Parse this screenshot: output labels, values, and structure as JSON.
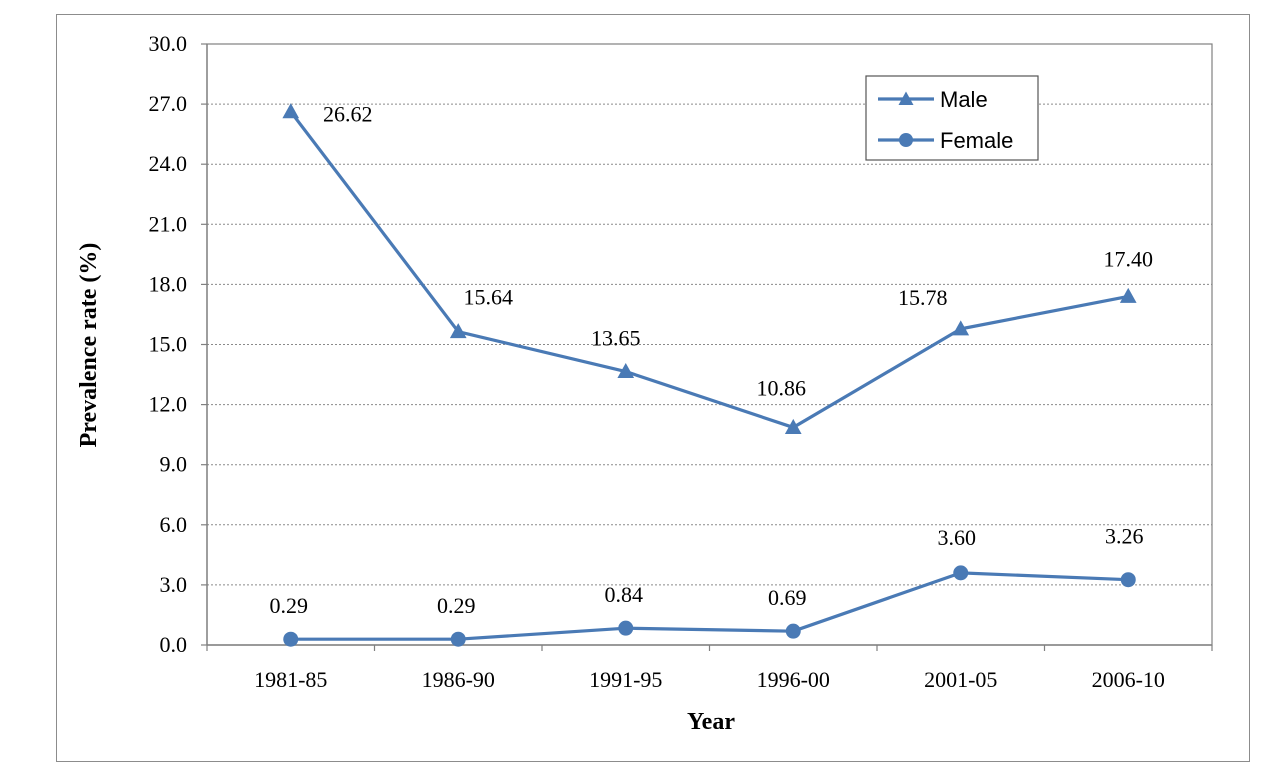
{
  "chart_data": {
    "type": "line",
    "title": "",
    "xlabel": "Year",
    "ylabel": "Prevalence rate (%)",
    "categories": [
      "1981-85",
      "1986-90",
      "1991-95",
      "1996-00",
      "2001-05",
      "2006-10"
    ],
    "ylim": [
      0,
      30
    ],
    "yticks": [
      "0.0",
      "3.0",
      "6.0",
      "9.0",
      "12.0",
      "15.0",
      "18.0",
      "21.0",
      "24.0",
      "27.0",
      "30.0"
    ],
    "grid": true,
    "legend_position": "top-right",
    "series": [
      {
        "name": "Male",
        "marker": "triangle",
        "values": [
          26.62,
          15.64,
          13.65,
          10.86,
          15.78,
          17.4
        ],
        "labels": [
          "26.62",
          "15.64",
          "13.65",
          "10.86",
          "15.78",
          "17.40"
        ]
      },
      {
        "name": "Female",
        "marker": "circle",
        "values": [
          0.29,
          0.29,
          0.84,
          0.69,
          3.6,
          3.26
        ],
        "labels": [
          "0.29",
          "0.29",
          "0.84",
          "0.69",
          "3.60",
          "3.26"
        ]
      }
    ],
    "colors": {
      "series": "#4a7ab5",
      "axis": "#808080",
      "grid": "#8a8a8a"
    }
  }
}
